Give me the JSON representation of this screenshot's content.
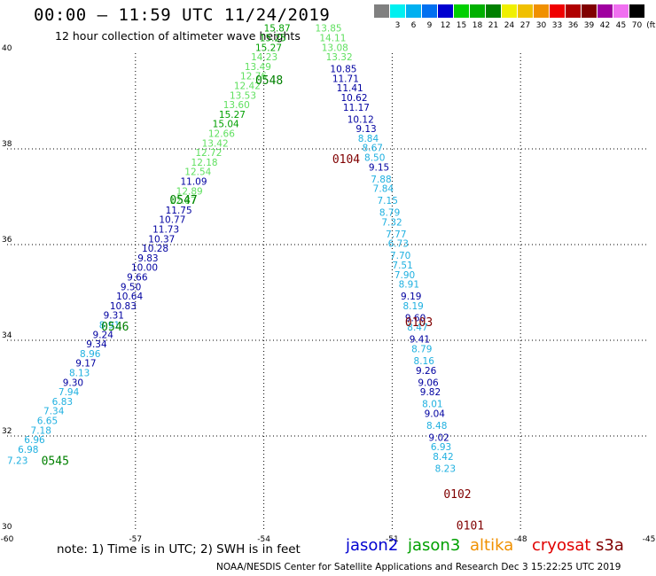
{
  "header": {
    "title": "00:00 – 11:59 UTC 11/24/2019",
    "subtitle": "12 hour collection of altimeter wave heights"
  },
  "legend": {
    "unit_label": "(ft)",
    "swatches": [
      {
        "color": "#808080",
        "label": ""
      },
      {
        "color": "#00f0f0",
        "label": "3"
      },
      {
        "color": "#00b0f0",
        "label": "6"
      },
      {
        "color": "#0070f0",
        "label": "9"
      },
      {
        "color": "#0000d0",
        "label": "12"
      },
      {
        "color": "#00d000",
        "label": "15"
      },
      {
        "color": "#00b000",
        "label": "18"
      },
      {
        "color": "#008000",
        "label": "21"
      },
      {
        "color": "#f0f000",
        "label": "24"
      },
      {
        "color": "#f0c000",
        "label": "27"
      },
      {
        "color": "#f09000",
        "label": "30"
      },
      {
        "color": "#f00000",
        "label": "33"
      },
      {
        "color": "#b00000",
        "label": "36"
      },
      {
        "color": "#800000",
        "label": "39"
      },
      {
        "color": "#a000a0",
        "label": "42"
      },
      {
        "color": "#f070f0",
        "label": "45"
      },
      {
        "color": "#000000",
        "label": "70"
      }
    ]
  },
  "map": {
    "lon_range": [
      -60,
      -45
    ],
    "lat_range": [
      30,
      40
    ],
    "x_ticks": [
      "-60",
      "-57",
      "-54",
      "-51",
      "-48",
      "-45"
    ],
    "y_ticks": [
      "30",
      "32",
      "34",
      "36",
      "38",
      "40"
    ],
    "grid": "dotted",
    "track_colors": {
      "lightblue": "#1fb0e0",
      "darkblue": "#0000a0",
      "lightgreen": "#60e060",
      "green": "#00a000"
    },
    "time_labels": [
      {
        "text": "0545",
        "color": "#008000",
        "lon": -59.2,
        "lat": 31.4
      },
      {
        "text": "0546",
        "color": "#008000",
        "lon": -57.8,
        "lat": 34.2
      },
      {
        "text": "0547",
        "color": "#008000",
        "lon": -56.2,
        "lat": 36.85
      },
      {
        "text": "0548",
        "color": "#008000",
        "lon": -54.2,
        "lat": 39.35
      },
      {
        "text": "0104",
        "color": "#800000",
        "lon": -52.4,
        "lat": 37.7
      },
      {
        "text": "0103",
        "color": "#800000",
        "lon": -50.7,
        "lat": 34.3
      },
      {
        "text": "0102",
        "color": "#800000",
        "lon": -49.8,
        "lat": 30.7
      },
      {
        "text": "0101",
        "color": "#800000",
        "lon": -49.5,
        "lat": 30.05
      }
    ],
    "track_a": [
      {
        "v": "7.23",
        "c": "lightblue",
        "lon": -60.0,
        "lat": 31.42
      },
      {
        "v": "6.98",
        "c": "lightblue",
        "lon": -59.75,
        "lat": 31.65
      },
      {
        "v": "6.96",
        "c": "lightblue",
        "lon": -59.6,
        "lat": 31.85
      },
      {
        "v": "7.18",
        "c": "lightblue",
        "lon": -59.45,
        "lat": 32.05
      },
      {
        "v": "6.65",
        "c": "lightblue",
        "lon": -59.3,
        "lat": 32.25
      },
      {
        "v": "7.34",
        "c": "lightblue",
        "lon": -59.15,
        "lat": 32.45
      },
      {
        "v": "6.83",
        "c": "lightblue",
        "lon": -58.95,
        "lat": 32.65
      },
      {
        "v": "7.94",
        "c": "lightblue",
        "lon": -58.8,
        "lat": 32.85
      },
      {
        "v": "9.30",
        "c": "darkblue",
        "lon": -58.7,
        "lat": 33.05
      },
      {
        "v": "8.13",
        "c": "lightblue",
        "lon": -58.55,
        "lat": 33.25
      },
      {
        "v": "9.17",
        "c": "darkblue",
        "lon": -58.4,
        "lat": 33.45
      },
      {
        "v": "8.96",
        "c": "lightblue",
        "lon": -58.3,
        "lat": 33.65
      },
      {
        "v": "9.34",
        "c": "darkblue",
        "lon": -58.15,
        "lat": 33.85
      },
      {
        "v": "9.24",
        "c": "darkblue",
        "lon": -58.0,
        "lat": 34.05
      },
      {
        "v": "8.91",
        "c": "lightblue",
        "lon": -57.85,
        "lat": 34.25
      },
      {
        "v": "9.31",
        "c": "darkblue",
        "lon": -57.75,
        "lat": 34.45
      },
      {
        "v": "10.83",
        "c": "darkblue",
        "lon": -57.6,
        "lat": 34.65
      },
      {
        "v": "10.64",
        "c": "darkblue",
        "lon": -57.45,
        "lat": 34.85
      },
      {
        "v": "9.50",
        "c": "darkblue",
        "lon": -57.35,
        "lat": 35.05
      },
      {
        "v": "9.66",
        "c": "darkblue",
        "lon": -57.2,
        "lat": 35.25
      },
      {
        "v": "10.00",
        "c": "darkblue",
        "lon": -57.1,
        "lat": 35.45
      },
      {
        "v": "9.83",
        "c": "darkblue",
        "lon": -56.95,
        "lat": 35.65
      },
      {
        "v": "10.28",
        "c": "darkblue",
        "lon": -56.85,
        "lat": 35.85
      },
      {
        "v": "10.37",
        "c": "darkblue",
        "lon": -56.7,
        "lat": 36.05
      },
      {
        "v": "11.73",
        "c": "darkblue",
        "lon": -56.6,
        "lat": 36.25
      },
      {
        "v": "10.77",
        "c": "darkblue",
        "lon": -56.45,
        "lat": 36.45
      },
      {
        "v": "11.75",
        "c": "darkblue",
        "lon": -56.3,
        "lat": 36.65
      },
      {
        "v": "12.87",
        "c": "lightgreen",
        "lon": -56.2,
        "lat": 36.85
      },
      {
        "v": "12.89",
        "c": "lightgreen",
        "lon": -56.05,
        "lat": 37.05
      },
      {
        "v": "11.09",
        "c": "darkblue",
        "lon": -55.95,
        "lat": 37.25
      },
      {
        "v": "12.54",
        "c": "lightgreen",
        "lon": -55.85,
        "lat": 37.45
      },
      {
        "v": "12.18",
        "c": "lightgreen",
        "lon": -55.7,
        "lat": 37.65
      },
      {
        "v": "12.72",
        "c": "lightgreen",
        "lon": -55.6,
        "lat": 37.85
      },
      {
        "v": "13.42",
        "c": "lightgreen",
        "lon": -55.45,
        "lat": 38.05
      },
      {
        "v": "12.66",
        "c": "lightgreen",
        "lon": -55.3,
        "lat": 38.25
      },
      {
        "v": "15.04",
        "c": "green",
        "lon": -55.2,
        "lat": 38.45
      },
      {
        "v": "15.27",
        "c": "green",
        "lon": -55.05,
        "lat": 38.65
      },
      {
        "v": "13.60",
        "c": "lightgreen",
        "lon": -54.95,
        "lat": 38.85
      },
      {
        "v": "13.53",
        "c": "lightgreen",
        "lon": -54.8,
        "lat": 39.05
      },
      {
        "v": "12.42",
        "c": "lightgreen",
        "lon": -54.7,
        "lat": 39.25
      },
      {
        "v": "12.76",
        "c": "lightgreen",
        "lon": -54.55,
        "lat": 39.45
      },
      {
        "v": "13.49",
        "c": "lightgreen",
        "lon": -54.45,
        "lat": 39.65
      },
      {
        "v": "14.23",
        "c": "lightgreen",
        "lon": -54.3,
        "lat": 39.85
      },
      {
        "v": "15.27",
        "c": "green",
        "lon": -54.2,
        "lat": 40.05
      },
      {
        "v": "15.25",
        "c": "green",
        "lon": -54.1,
        "lat": 40.25
      },
      {
        "v": "15.87",
        "c": "green",
        "lon": -54.0,
        "lat": 40.45
      }
    ],
    "track_b": [
      {
        "v": "13.85",
        "c": "lightgreen",
        "lon": -52.8,
        "lat": 40.45
      },
      {
        "v": "14.11",
        "c": "lightgreen",
        "lon": -52.7,
        "lat": 40.25
      },
      {
        "v": "13.08",
        "c": "lightgreen",
        "lon": -52.65,
        "lat": 40.05
      },
      {
        "v": "13.32",
        "c": "lightgreen",
        "lon": -52.55,
        "lat": 39.85
      },
      {
        "v": "10.85",
        "c": "darkblue",
        "lon": -52.45,
        "lat": 39.6
      },
      {
        "v": "11.71",
        "c": "darkblue",
        "lon": -52.4,
        "lat": 39.4
      },
      {
        "v": "11.41",
        "c": "darkblue",
        "lon": -52.3,
        "lat": 39.2
      },
      {
        "v": "10.62",
        "c": "darkblue",
        "lon": -52.2,
        "lat": 39.0
      },
      {
        "v": "11.17",
        "c": "darkblue",
        "lon": -52.15,
        "lat": 38.8
      },
      {
        "v": "10.12",
        "c": "darkblue",
        "lon": -52.05,
        "lat": 38.55
      },
      {
        "v": "9.13",
        "c": "darkblue",
        "lon": -51.85,
        "lat": 38.35
      },
      {
        "v": "8.84",
        "c": "lightblue",
        "lon": -51.8,
        "lat": 38.15
      },
      {
        "v": "8.67",
        "c": "lightblue",
        "lon": -51.7,
        "lat": 37.95
      },
      {
        "v": "8.50",
        "c": "lightblue",
        "lon": -51.65,
        "lat": 37.75
      },
      {
        "v": "9.15",
        "c": "darkblue",
        "lon": -51.55,
        "lat": 37.55
      },
      {
        "v": "7.88",
        "c": "lightblue",
        "lon": -51.5,
        "lat": 37.3
      },
      {
        "v": "7.84",
        "c": "lightblue",
        "lon": -51.45,
        "lat": 37.1
      },
      {
        "v": "7.15",
        "c": "lightblue",
        "lon": -51.35,
        "lat": 36.85
      },
      {
        "v": "8.79",
        "c": "lightblue",
        "lon": -51.3,
        "lat": 36.6
      },
      {
        "v": "7.32",
        "c": "lightblue",
        "lon": -51.25,
        "lat": 36.4
      },
      {
        "v": "7.77",
        "c": "lightblue",
        "lon": -51.15,
        "lat": 36.15
      },
      {
        "v": "6.73",
        "c": "lightblue",
        "lon": -51.1,
        "lat": 35.95
      },
      {
        "v": "7.70",
        "c": "lightblue",
        "lon": -51.05,
        "lat": 35.7
      },
      {
        "v": "7.51",
        "c": "lightblue",
        "lon": -51.0,
        "lat": 35.5
      },
      {
        "v": "7.90",
        "c": "lightblue",
        "lon": -50.95,
        "lat": 35.3
      },
      {
        "v": "8.91",
        "c": "lightblue",
        "lon": -50.85,
        "lat": 35.1
      },
      {
        "v": "9.19",
        "c": "darkblue",
        "lon": -50.8,
        "lat": 34.85
      },
      {
        "v": "8.19",
        "c": "lightblue",
        "lon": -50.75,
        "lat": 34.65
      },
      {
        "v": "9.60",
        "c": "darkblue",
        "lon": -50.7,
        "lat": 34.4
      },
      {
        "v": "8.47",
        "c": "lightblue",
        "lon": -50.65,
        "lat": 34.2
      },
      {
        "v": "9.41",
        "c": "darkblue",
        "lon": -50.6,
        "lat": 33.95
      },
      {
        "v": "8.79",
        "c": "lightblue",
        "lon": -50.55,
        "lat": 33.75
      },
      {
        "v": "8.16",
        "c": "lightblue",
        "lon": -50.5,
        "lat": 33.5
      },
      {
        "v": "9.26",
        "c": "darkblue",
        "lon": -50.45,
        "lat": 33.3
      },
      {
        "v": "9.06",
        "c": "darkblue",
        "lon": -50.4,
        "lat": 33.05
      },
      {
        "v": "9.82",
        "c": "darkblue",
        "lon": -50.35,
        "lat": 32.85
      },
      {
        "v": "8.01",
        "c": "lightblue",
        "lon": -50.3,
        "lat": 32.6
      },
      {
        "v": "9.04",
        "c": "darkblue",
        "lon": -50.25,
        "lat": 32.4
      },
      {
        "v": "8.48",
        "c": "lightblue",
        "lon": -50.2,
        "lat": 32.15
      },
      {
        "v": "9.02",
        "c": "darkblue",
        "lon": -50.15,
        "lat": 31.9
      },
      {
        "v": "6.93",
        "c": "lightblue",
        "lon": -50.1,
        "lat": 31.7
      },
      {
        "v": "8.42",
        "c": "lightblue",
        "lon": -50.05,
        "lat": 31.5
      },
      {
        "v": "8.23",
        "c": "lightblue",
        "lon": -50.0,
        "lat": 31.25
      }
    ]
  },
  "note": "note:  1) Time is in UTC;  2) SWH is in feet",
  "satellites": [
    {
      "name": "jason2",
      "color": "#0000d0"
    },
    {
      "name": "jason3",
      "color": "#00a000"
    },
    {
      "name": "altika",
      "color": "#f09000"
    },
    {
      "name": "cryosat",
      "color": "#e00000"
    },
    {
      "name": "s3a",
      "color": "#800000"
    }
  ],
  "footer": "NOAA/NESDIS Center for Satellite Applications and Research    Dec  3 15:22:25 UTC 2019"
}
